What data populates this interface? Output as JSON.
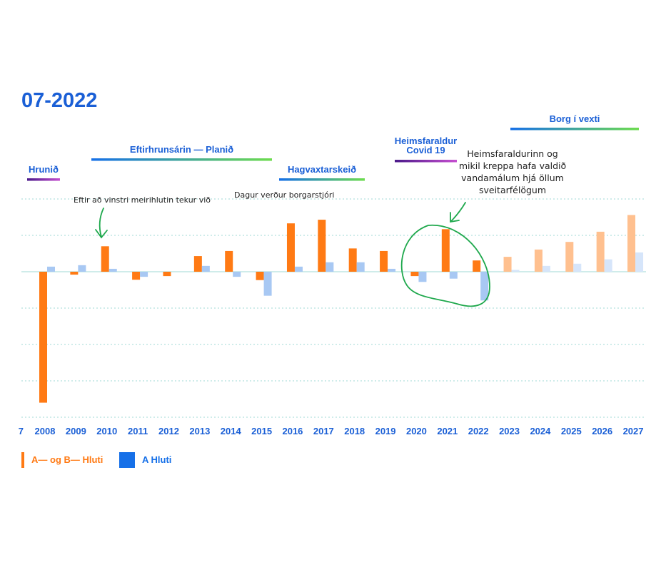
{
  "chart_data": {
    "type": "bar",
    "title": "07-2022",
    "categories": [
      "2008",
      "2009",
      "2010",
      "2011",
      "2012",
      "2013",
      "2014",
      "2015",
      "2016",
      "2017",
      "2018",
      "2019",
      "2020",
      "2021",
      "2022",
      "2023",
      "2024",
      "2025",
      "2026",
      "2027"
    ],
    "edge_tick_label": "7",
    "series": [
      {
        "name": "A— og B— Hluti",
        "color": "#ff7a14",
        "projected_color": "#ffc08f",
        "values": [
          -36,
          -0.8,
          7,
          -2.2,
          -1.2,
          4.3,
          5.7,
          -2.3,
          13.3,
          14.3,
          6.4,
          5.7,
          -1.2,
          11.7,
          3.1,
          4.1,
          6.1,
          8.2,
          11,
          15.6
        ]
      },
      {
        "name": "A Hluti",
        "color": "#a8c8f3",
        "projected_color": "#d6e5fa",
        "values": [
          1.4,
          1.8,
          0.8,
          -1.4,
          0,
          1.6,
          -1.4,
          -6.6,
          1.4,
          2.6,
          2.6,
          0.8,
          -2.8,
          -1.9,
          -7.9,
          0.5,
          1.6,
          2.2,
          3.4,
          5.3
        ]
      }
    ],
    "projected_from": "2023",
    "ylim": [
      -40,
      20
    ],
    "grid": true,
    "xlabel": "",
    "ylabel": "",
    "legend_position": "bottom-left",
    "legend_swatch_colors": [
      "#ff7a14",
      "#1670e8"
    ],
    "periods": [
      {
        "label": "Hrunið",
        "start": "2008",
        "end": "2008",
        "colors": [
          "#4b1a8a",
          "#c64fd0"
        ]
      },
      {
        "label": "Eftirhrunsárin — Planið",
        "start": "2010",
        "end": "2015",
        "colors": [
          "#1670e8",
          "#6ddc4e"
        ]
      },
      {
        "label": "Hagvaxtarskeið",
        "start": "2016",
        "end": "2018",
        "colors": [
          "#1670e8",
          "#6ddc4e"
        ]
      },
      {
        "label_lines": [
          "Heimsfaraldur",
          "Covid 19"
        ],
        "start": "2020",
        "end": "2021",
        "colors": [
          "#4b1a8a",
          "#c64fd0"
        ]
      },
      {
        "label": "Borg í vexti",
        "start": "2023",
        "end": "2027",
        "colors": [
          "#1670e8",
          "#6ddc4e"
        ]
      }
    ],
    "annotations": [
      {
        "text": "Eftir að vinstri meirihlutin tekur við",
        "year": "2010"
      },
      {
        "text": "Dagur verður borgarstjóri",
        "year": "2015"
      },
      {
        "lines": [
          "Heimsfaraldurinn og",
          "mikil kreppa hafa valdið",
          "vandamálum hjá öllum",
          "sveitarfélögum"
        ],
        "years": [
          "2020",
          "2022"
        ]
      }
    ],
    "accent_color": "#1a5fd6",
    "annotation_color": "#1ea84c"
  }
}
